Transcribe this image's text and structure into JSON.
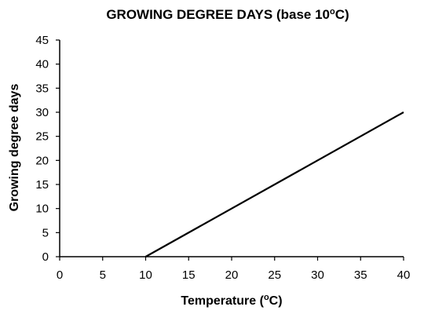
{
  "chart_data": {
    "type": "line",
    "title": {
      "before": "GROWING DEGREE DAYS (base 10",
      "superscript": "o",
      "after": "C)"
    },
    "xlabel": {
      "before": "Temperature (",
      "superscript": "o",
      "after": "C)"
    },
    "ylabel": "Growing degree days",
    "xlim": [
      0,
      40
    ],
    "ylim": [
      0,
      45
    ],
    "xticks": [
      0,
      5,
      10,
      15,
      20,
      25,
      30,
      35,
      40
    ],
    "yticks": [
      0,
      5,
      10,
      15,
      20,
      25,
      30,
      35,
      40,
      45
    ],
    "grid": false,
    "legend": "none",
    "series": [
      {
        "x": [
          10,
          40
        ],
        "y": [
          0,
          30
        ],
        "color": "#000000"
      }
    ]
  }
}
